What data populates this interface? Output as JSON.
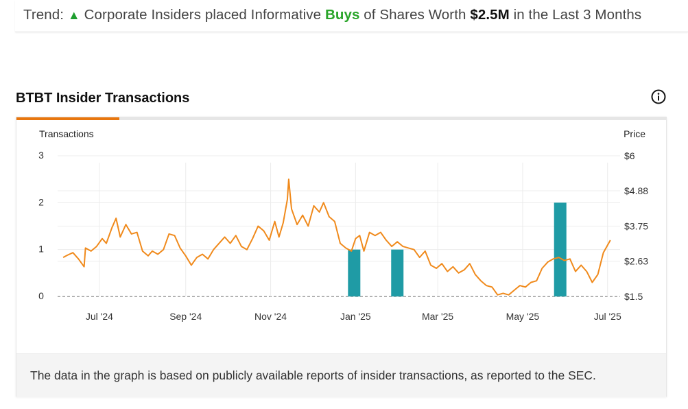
{
  "trend": {
    "prefix": "Trend:",
    "arrow": "▲",
    "text1": "Corporate Insiders placed Informative",
    "buys": "Buys",
    "text2": "of Shares Worth",
    "amount": "$2.5M",
    "text3": "in the Last 3 Months"
  },
  "section": {
    "title": "BTBT Insider Transactions",
    "info_icon": "info-icon"
  },
  "colors": {
    "accent": "#e8760e",
    "bar": "#1f9ba5",
    "line": "#f08a1c",
    "buys": "#2aa52a"
  },
  "chart_data": {
    "type": "bar+line",
    "left_axis": {
      "label": "Transactions",
      "ticks": [
        "3",
        "2",
        "1",
        "0"
      ],
      "ylim": [
        0,
        3
      ]
    },
    "right_axis": {
      "label": "Price",
      "ticks": [
        "$6",
        "$4.88",
        "$3.75",
        "$2.63",
        "$1.5"
      ],
      "ylim": [
        1.5,
        6
      ]
    },
    "x_ticks": [
      "Jul '24",
      "Sep '24",
      "Nov '24",
      "Jan '25",
      "Mar '25",
      "May '25",
      "Jul '25"
    ],
    "grid": true,
    "bars": [
      {
        "date": "2024-12-31",
        "value": 1
      },
      {
        "date": "2025-01-31",
        "value": 1
      },
      {
        "date": "2025-05-28",
        "value": 2
      }
    ],
    "price_series": {
      "name": "Price",
      "points": [
        [
          "2024-06-05",
          2.75
        ],
        [
          "2024-06-08",
          2.82
        ],
        [
          "2024-06-12",
          2.9
        ],
        [
          "2024-06-16",
          2.7
        ],
        [
          "2024-06-20",
          2.45
        ],
        [
          "2024-06-21",
          3.05
        ],
        [
          "2024-06-25",
          2.95
        ],
        [
          "2024-06-29",
          3.1
        ],
        [
          "2024-07-03",
          3.35
        ],
        [
          "2024-07-06",
          3.2
        ],
        [
          "2024-07-10",
          3.7
        ],
        [
          "2024-07-13",
          4.0
        ],
        [
          "2024-07-16",
          3.4
        ],
        [
          "2024-07-20",
          3.8
        ],
        [
          "2024-07-24",
          3.5
        ],
        [
          "2024-07-28",
          3.55
        ],
        [
          "2024-08-01",
          2.95
        ],
        [
          "2024-08-05",
          2.8
        ],
        [
          "2024-08-08",
          2.95
        ],
        [
          "2024-08-12",
          2.85
        ],
        [
          "2024-08-16",
          3.0
        ],
        [
          "2024-08-20",
          3.5
        ],
        [
          "2024-08-24",
          3.45
        ],
        [
          "2024-08-28",
          3.05
        ],
        [
          "2024-09-01",
          2.8
        ],
        [
          "2024-09-05",
          2.5
        ],
        [
          "2024-09-09",
          2.75
        ],
        [
          "2024-09-13",
          2.85
        ],
        [
          "2024-09-17",
          2.7
        ],
        [
          "2024-09-21",
          3.0
        ],
        [
          "2024-09-25",
          3.2
        ],
        [
          "2024-09-29",
          3.4
        ],
        [
          "2024-10-03",
          3.2
        ],
        [
          "2024-10-07",
          3.45
        ],
        [
          "2024-10-11",
          3.1
        ],
        [
          "2024-10-15",
          3.0
        ],
        [
          "2024-10-19",
          3.35
        ],
        [
          "2024-10-23",
          3.75
        ],
        [
          "2024-10-27",
          3.6
        ],
        [
          "2024-10-31",
          3.3
        ],
        [
          "2024-11-04",
          3.9
        ],
        [
          "2024-11-07",
          3.4
        ],
        [
          "2024-11-10",
          3.85
        ],
        [
          "2024-11-13",
          4.6
        ],
        [
          "2024-11-14",
          5.25
        ],
        [
          "2024-11-16",
          4.3
        ],
        [
          "2024-11-20",
          3.8
        ],
        [
          "2024-11-24",
          4.1
        ],
        [
          "2024-11-28",
          3.75
        ],
        [
          "2024-12-02",
          4.4
        ],
        [
          "2024-12-06",
          4.2
        ],
        [
          "2024-12-09",
          4.5
        ],
        [
          "2024-12-13",
          4.05
        ],
        [
          "2024-12-17",
          3.9
        ],
        [
          "2024-12-21",
          3.2
        ],
        [
          "2024-12-25",
          3.05
        ],
        [
          "2024-12-29",
          2.95
        ],
        [
          "2025-01-01",
          3.35
        ],
        [
          "2025-01-04",
          3.45
        ],
        [
          "2025-01-07",
          2.95
        ],
        [
          "2025-01-11",
          3.55
        ],
        [
          "2025-01-15",
          3.45
        ],
        [
          "2025-01-19",
          3.55
        ],
        [
          "2025-01-23",
          3.3
        ],
        [
          "2025-01-27",
          3.1
        ],
        [
          "2025-01-31",
          3.25
        ],
        [
          "2025-02-04",
          3.1
        ],
        [
          "2025-02-08",
          3.05
        ],
        [
          "2025-02-12",
          3.0
        ],
        [
          "2025-02-16",
          2.75
        ],
        [
          "2025-02-20",
          2.95
        ],
        [
          "2025-02-24",
          2.5
        ],
        [
          "2025-02-28",
          2.4
        ],
        [
          "2025-03-04",
          2.55
        ],
        [
          "2025-03-08",
          2.3
        ],
        [
          "2025-03-12",
          2.45
        ],
        [
          "2025-03-16",
          2.25
        ],
        [
          "2025-03-20",
          2.35
        ],
        [
          "2025-03-24",
          2.55
        ],
        [
          "2025-03-28",
          2.2
        ],
        [
          "2025-04-01",
          2.0
        ],
        [
          "2025-04-05",
          1.85
        ],
        [
          "2025-04-09",
          1.8
        ],
        [
          "2025-04-13",
          1.55
        ],
        [
          "2025-04-17",
          1.6
        ],
        [
          "2025-04-21",
          1.55
        ],
        [
          "2025-04-25",
          1.7
        ],
        [
          "2025-04-29",
          1.85
        ],
        [
          "2025-05-03",
          1.8
        ],
        [
          "2025-05-07",
          1.95
        ],
        [
          "2025-05-11",
          2.0
        ],
        [
          "2025-05-15",
          2.4
        ],
        [
          "2025-05-19",
          2.6
        ],
        [
          "2025-05-23",
          2.7
        ],
        [
          "2025-05-27",
          2.75
        ],
        [
          "2025-05-31",
          2.65
        ],
        [
          "2025-06-04",
          2.7
        ],
        [
          "2025-06-08",
          2.3
        ],
        [
          "2025-06-12",
          2.5
        ],
        [
          "2025-06-16",
          2.3
        ],
        [
          "2025-06-20",
          1.95
        ],
        [
          "2025-06-24",
          2.2
        ],
        [
          "2025-06-28",
          2.9
        ],
        [
          "2025-07-03",
          3.3
        ]
      ]
    }
  },
  "footer": {
    "text": "The data in the graph is based on publicly available reports of insider transactions, as reported to the SEC."
  }
}
